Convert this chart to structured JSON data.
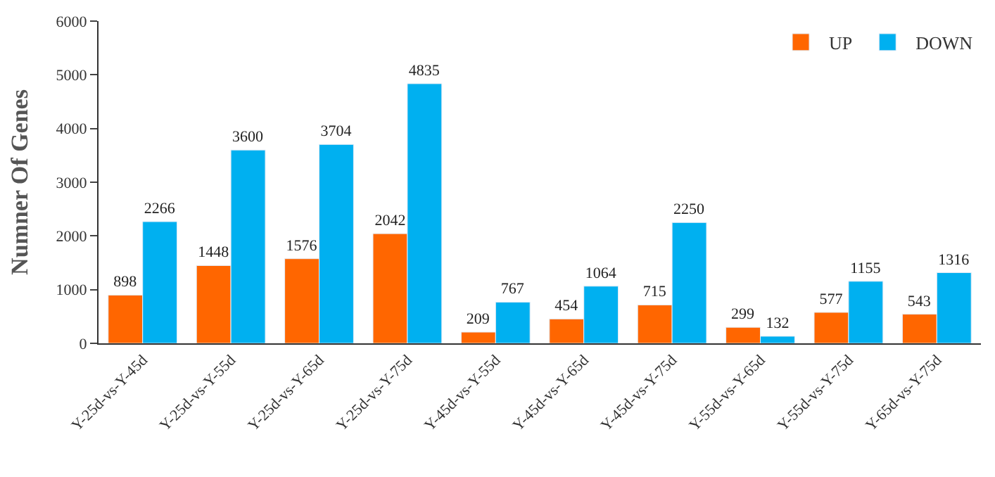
{
  "chart_data": {
    "type": "bar",
    "ylabel": "Numner Of Genes",
    "categories": [
      "Y-25d-vs-Y-45d",
      "Y-25d-vs-Y-55d",
      "Y-25d-vs-Y-65d",
      "Y-25d-vs-Y-75d",
      "Y-45d-vs-Y-55d",
      "Y-45d-vs-Y-65d",
      "Y-45d-vs-Y-75d",
      "Y-55d-vs-Y-65d",
      "Y-55d-vs-Y-75d",
      "Y-65d-vs-Y-75d"
    ],
    "series": [
      {
        "name": "UP",
        "color": "#ff6600",
        "values": [
          898,
          1448,
          1576,
          2042,
          209,
          454,
          715,
          299,
          577,
          543
        ]
      },
      {
        "name": "DOWN",
        "color": "#00b0f0",
        "values": [
          2266,
          3600,
          3704,
          4835,
          767,
          1064,
          2250,
          132,
          1155,
          1316
        ]
      }
    ],
    "ylim": [
      0,
      6000
    ],
    "yticks": [
      0,
      1000,
      2000,
      3000,
      4000,
      5000,
      6000
    ],
    "data_labels": true,
    "legend": "top right"
  }
}
